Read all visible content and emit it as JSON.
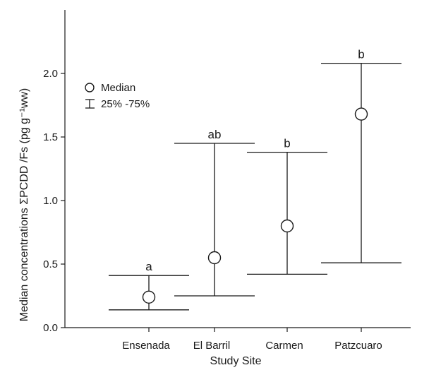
{
  "chart_data": {
    "type": "error-bar",
    "categories": [
      "Ensenada",
      "El Barril",
      "Carmen",
      "Patzcuaro"
    ],
    "median": [
      0.24,
      0.55,
      0.8,
      1.68
    ],
    "q25": [
      0.14,
      0.25,
      0.42,
      0.51
    ],
    "q75": [
      0.41,
      1.45,
      1.38,
      2.08
    ],
    "significance": [
      "a",
      "ab",
      "b",
      "b"
    ],
    "xlabel": "Study Site",
    "ylabel": "Median concentrations ΣPCDD /Fs (pg g⁻¹ww)",
    "ylim": [
      0,
      2.5
    ],
    "yticks": [
      0.0,
      0.5,
      1.0,
      1.5,
      2.0
    ],
    "ytick_labels": [
      "0.0",
      "0.5",
      "1.0",
      "1.5",
      "2.0"
    ],
    "legend": {
      "median_label": "Median",
      "range_label": "25% -75%",
      "position": "upper-left"
    },
    "grid": false
  }
}
